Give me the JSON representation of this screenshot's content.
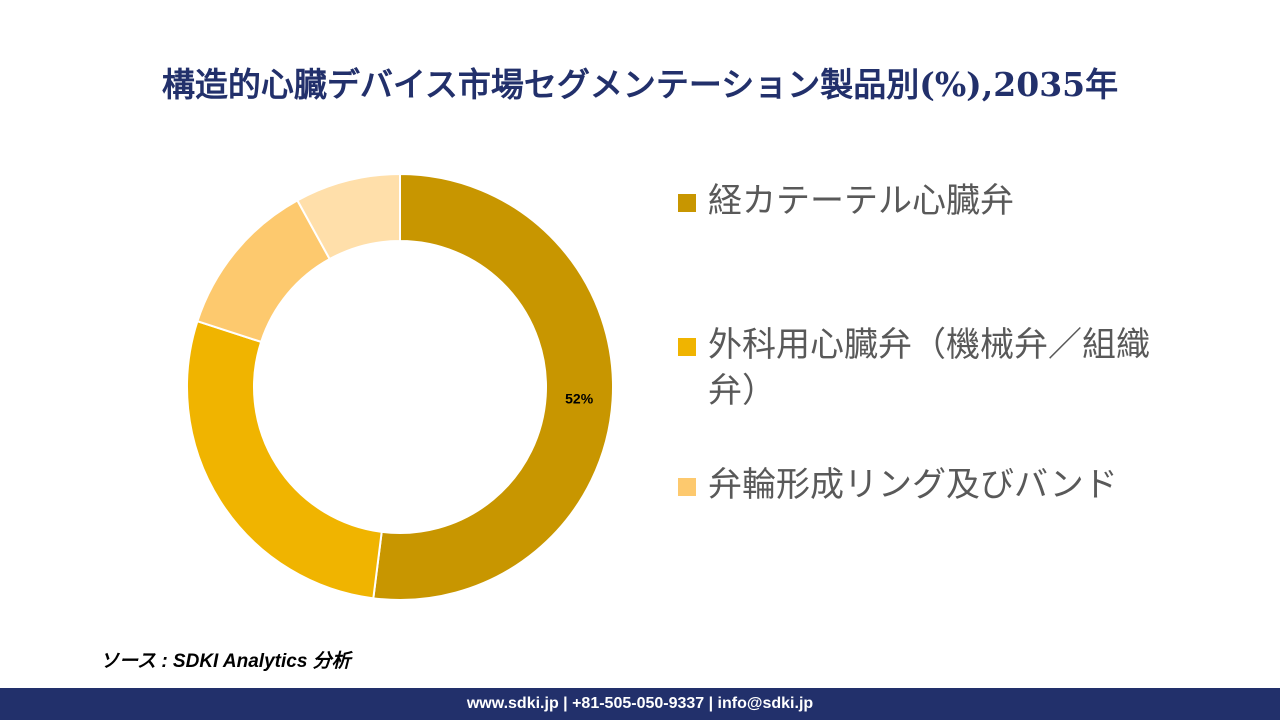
{
  "title": "構造的心臓デバイス市場セグメンテーション製品別(%),2035年",
  "chart_data": {
    "type": "donut",
    "title": "構造的心臓デバイス市場セグメンテーション製品別(%),2035年",
    "categories": [
      "経カテーテル心臓弁",
      "外科用心臓弁（機械弁／組織弁）",
      "弁輪形成リング及びバンド",
      ""
    ],
    "values": [
      52,
      28,
      12,
      8
    ],
    "colors": [
      "#C89600",
      "#F0B400",
      "#FDC96E",
      "#FFDFAA"
    ],
    "data_labels": [
      "52%",
      "",
      "",
      ""
    ],
    "legend_position": "right"
  },
  "legend": [
    {
      "label": "経カテーテル心臓弁",
      "color": "#C89600"
    },
    {
      "label": "外科用心臓弁（機械弁／組織弁）",
      "color": "#F0B400"
    },
    {
      "label": "弁輪形成リング及びバンド",
      "color": "#FDC96E"
    }
  ],
  "source": "ソース : SDKI Analytics 分析",
  "footer": "www.sdki.jp | +81-505-050-9337 | info@sdki.jp"
}
